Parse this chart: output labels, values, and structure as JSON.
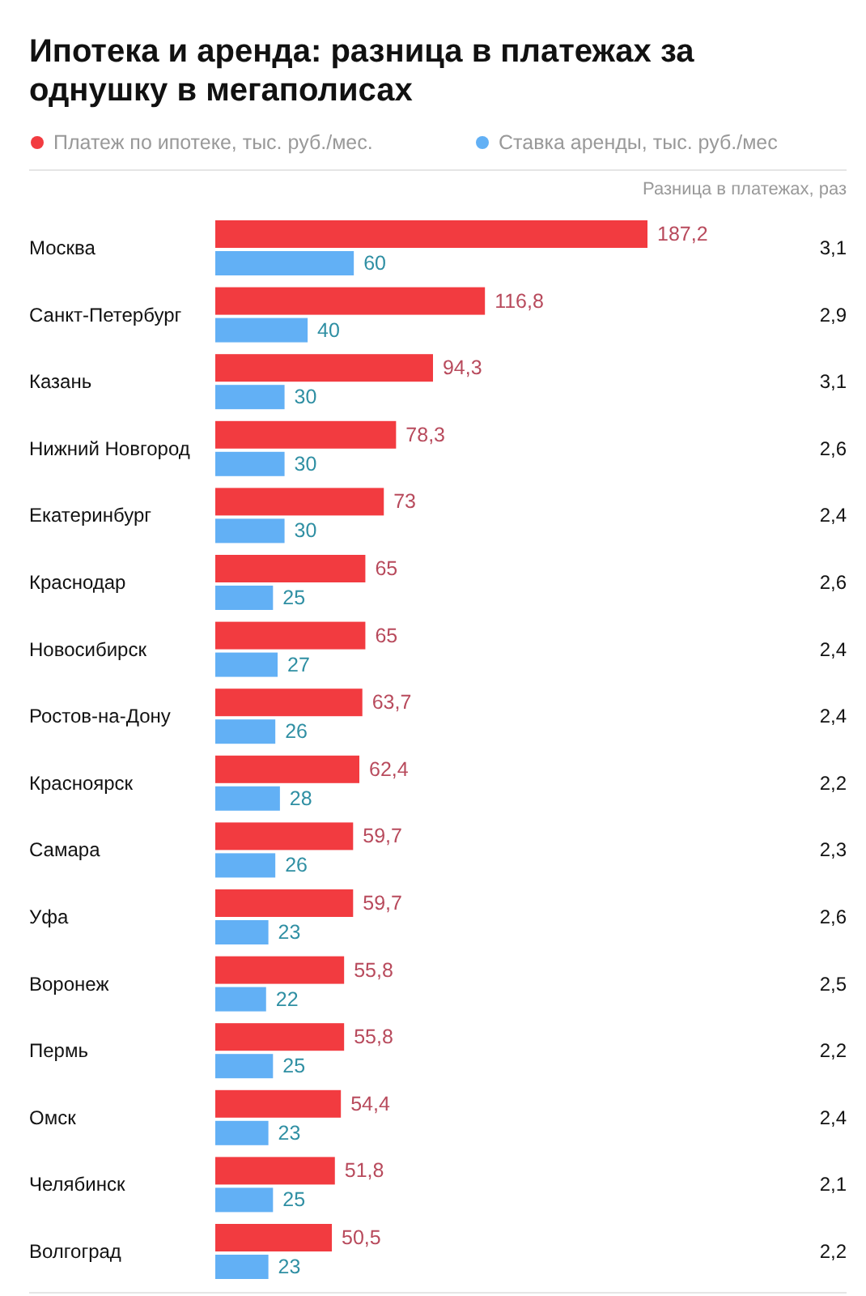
{
  "chart_data": {
    "type": "bar",
    "orientation": "horizontal",
    "title": "Ипотека и аренда: разница в платежах за однушку в мегаполисах",
    "legend": "top",
    "data_labels": true,
    "categories": [
      "Москва",
      "Санкт-Петербург",
      "Казань",
      "Нижний Новгород",
      "Екатеринбург",
      "Краснодар",
      "Новосибирск",
      "Ростов-на-Дону",
      "Красноярск",
      "Самара",
      "Уфа",
      "Воронеж",
      "Пермь",
      "Омск",
      "Челябинск",
      "Волгоград"
    ],
    "series": [
      {
        "name": "Платеж по ипотеке, тыс. руб./мес.",
        "color": "#f23b40",
        "values": [
          187.2,
          116.8,
          94.3,
          78.3,
          73,
          65,
          65,
          63.7,
          62.4,
          59.7,
          59.7,
          55.8,
          55.8,
          54.4,
          51.8,
          50.5
        ],
        "value_labels": [
          "187,2",
          "116,8",
          "94,3",
          "78,3",
          "73",
          "65",
          "65",
          "63,7",
          "62,4",
          "59,7",
          "59,7",
          "55,8",
          "55,8",
          "54,4",
          "51,8",
          "50,5"
        ]
      },
      {
        "name": "Ставка аренды, тыс. руб./мес",
        "color": "#62b0f5",
        "values": [
          60,
          40,
          30,
          30,
          30,
          25,
          27,
          26,
          28,
          26,
          23,
          22,
          25,
          23,
          25,
          23
        ],
        "value_labels": [
          "60",
          "40",
          "30",
          "30",
          "30",
          "25",
          "27",
          "26",
          "28",
          "26",
          "23",
          "22",
          "25",
          "23",
          "25",
          "23"
        ]
      }
    ],
    "annotations": [
      "Разница в платежах, раз",
      "3,1",
      "2,9",
      "3,1",
      "2,6",
      "2,4",
      "2,6",
      "2,4",
      "2,4",
      "2,2",
      "2,3",
      "2,6",
      "2,5",
      "2,2",
      "2,4",
      "2,1",
      "2,2"
    ]
  }
}
